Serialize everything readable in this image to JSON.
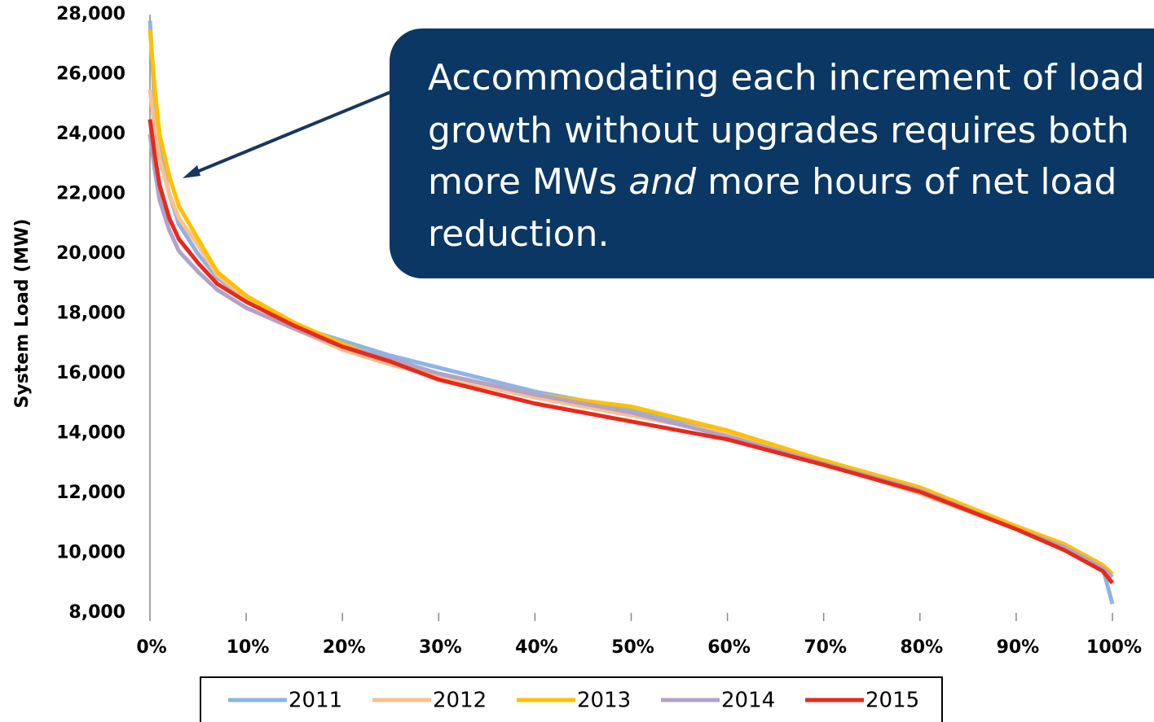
{
  "chart_data": {
    "type": "line",
    "y_label": "System Load (MW)",
    "x": [
      0,
      0.5,
      1,
      2,
      3,
      5,
      7,
      10,
      15,
      20,
      25,
      30,
      40,
      50,
      60,
      70,
      80,
      90,
      95,
      99,
      100
    ],
    "series": [
      {
        "name": "2011",
        "color": "#8eb4e3",
        "values": [
          27800,
          25000,
          23500,
          22000,
          21000,
          20000,
          19200,
          18500,
          17600,
          17100,
          16600,
          16200,
          15400,
          14800,
          14000,
          13000,
          12100,
          10900,
          10300,
          9500,
          8300
        ]
      },
      {
        "name": "2012",
        "color": "#fac090",
        "values": [
          25500,
          24200,
          23200,
          22000,
          21200,
          20300,
          19300,
          18500,
          17500,
          16800,
          16300,
          15900,
          15200,
          14600,
          14000,
          13000,
          12000,
          10800,
          10200,
          9500,
          9200
        ]
      },
      {
        "name": "2013",
        "color": "#ffc000",
        "values": [
          27500,
          25500,
          24000,
          22600,
          21600,
          20500,
          19400,
          18600,
          17700,
          17000,
          16400,
          16000,
          15300,
          14900,
          14100,
          13100,
          12200,
          10900,
          10300,
          9600,
          9300
        ]
      },
      {
        "name": "2014",
        "color": "#b3a2c7",
        "values": [
          24000,
          22800,
          21800,
          20800,
          20100,
          19400,
          18800,
          18200,
          17500,
          16900,
          16500,
          16000,
          15300,
          14700,
          13900,
          13000,
          12100,
          10800,
          10200,
          9500,
          9200
        ]
      },
      {
        "name": "2015",
        "color": "#e8291c",
        "values": [
          24500,
          23300,
          22300,
          21200,
          20500,
          19700,
          19000,
          18400,
          17600,
          16900,
          16400,
          15800,
          15000,
          14400,
          13800,
          12950,
          12050,
          10800,
          10100,
          9400,
          9000
        ]
      }
    ],
    "xlim": [
      0,
      100
    ],
    "xticks": [
      {
        "value": 0,
        "label": "0%"
      },
      {
        "value": 10,
        "label": "10%"
      },
      {
        "value": 20,
        "label": "20%"
      },
      {
        "value": 30,
        "label": "30%"
      },
      {
        "value": 40,
        "label": "40%"
      },
      {
        "value": 50,
        "label": "50%"
      },
      {
        "value": 60,
        "label": "60%"
      },
      {
        "value": 70,
        "label": "70%"
      },
      {
        "value": 80,
        "label": "80%"
      },
      {
        "value": 90,
        "label": "90%"
      },
      {
        "value": 100,
        "label": "100%"
      }
    ],
    "ylim": [
      8000,
      28000
    ],
    "yticks": [
      {
        "value": 8000,
        "label": "8,000"
      },
      {
        "value": 10000,
        "label": "10,000"
      },
      {
        "value": 12000,
        "label": "12,000"
      },
      {
        "value": 14000,
        "label": "14,000"
      },
      {
        "value": 16000,
        "label": "16,000"
      },
      {
        "value": 18000,
        "label": "18,000"
      },
      {
        "value": 20000,
        "label": "20,000"
      },
      {
        "value": 22000,
        "label": "22,000"
      },
      {
        "value": 24000,
        "label": "24,000"
      },
      {
        "value": 26000,
        "label": "26,000"
      },
      {
        "value": 28000,
        "label": "28,000"
      }
    ],
    "grid": true,
    "legend": "bottom",
    "annotation": {
      "line1": "Accommodating each increment of load",
      "line2": "growth without upgrades requires both",
      "line3a": "more MWs",
      "line3b": "and",
      "line3c": "more hours of net load",
      "line4": "reduction."
    }
  }
}
